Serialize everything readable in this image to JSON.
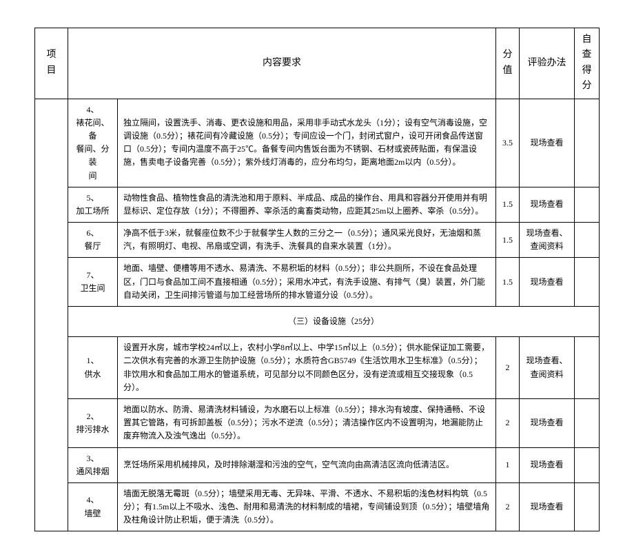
{
  "header": {
    "project": "项\n目",
    "content": "内容要求",
    "score": "分\n值",
    "method": "评验办法",
    "selfscore": "自查\n得分"
  },
  "rows": [
    {
      "subitem": "4、\n裱花间、备\n餐间、分装\n间",
      "content": "独立隔间，设置洗手、消毒、更衣设施和用品，采用非手动式水龙头（1分）；设有空气消毒设施，空调设施（0.5分）；裱花间有冷藏设施（0.5分）；专间应设一个门，封闭式窗户，设可开闭食品传送窗口（0.5分）；专间内温度不高于25℃。备餐专间内售饭台面为不锈钢、石材或瓷砖贴面，有保温设施，售卖电子设备完善（0.5分）；紫外线灯消毒的，应分布均匀，距离地面2m以内（0.5分）。",
      "score": "3.5",
      "method": "现场查看"
    },
    {
      "subitem": "5、\n加工场所",
      "content": "动物性食品、植物性食品的清洗池和用于原料、半成品、成品的操作台、用具和容器分开使用并有明显标识、定位存放（1分）；不得圈养、宰杀活的禽畜类动物，应距其25m以上圈养、宰杀（0.5分）。",
      "score": "1.5",
      "method": "现场查看"
    },
    {
      "subitem": "6、\n餐厅",
      "content": "净高不低于3米，就餐座位数不少于就餐学生人数的三分之一（0.5分）；通风采光良好，无油烟和蒸汽，有照明灯、电视、吊扇或空调，有洗手、洗餐具的自来水装置（1分）。",
      "score": "1.5",
      "method": "现场查看、\n查阅资料"
    },
    {
      "subitem": "7、\n卫生间",
      "content": "地面、墙壁、便槽等用不透水、易清洗、不易积垢的材料（0.5分）；非公共厕所，不设在食品处理区，门口与食品加工间不直接相通（0.5分）；采用水冲式，有洗手设施、有排气（臭）装置，外门能自动关闭，卫生间排污管道与加工经营场所的排水管道分设（0.5分）。",
      "score": "1.5",
      "method": "现场查看"
    }
  ],
  "section_title": "（三）设备设施（25分）",
  "rows2": [
    {
      "subitem": "1、\n供水",
      "content": "设置开水房，城市学校24㎡以上，农村小学8㎡以上、中学15㎡以上（0.5分）；供水能保证加工需要，二次供水有完善的水源卫生防护设施（0.5分）；水质符合GB5749《生活饮用水卫生标准》（0.5分）；非饮用水和食品加工用水的管道系统，可见部分以不同颜色区分，没有逆流或相互交接现象（0.5分）。",
      "score": "2",
      "method": "现场查看、\n查阅资料"
    },
    {
      "subitem": "2、\n排污排水",
      "content": "地面以防水、防滑、易清洗材料铺设，为水磨石以上标准（0.5分）；排水沟有坡度、保持通畅、不设置其它管路，有可拆卸盖板（0.5分）；污水不逆流（0.5分）；清洁操作区内不设置明沟，地漏能防止废弃物流入及浊气逸出（0.5分）。",
      "score": "2",
      "method": "现场查看"
    },
    {
      "subitem": "3、\n通风排烟",
      "content": "烹饪场所采用机械排风，及时排除潮湿和污浊的空气，空气流向由高清洁区流向低清洁区。",
      "score": "1",
      "method": "现场查看"
    },
    {
      "subitem": "4、\n墙壁",
      "content": "墙面无脱落无霉斑（0.5分）；墙壁采用无毒、无异味、平滑、不透水、不易积垢的浅色材料构筑（0.5分）；有1.5m以上不吸水、浅色、耐用和易清洗的材料制成的墙裙，专间铺设到顶（0.5分）；墙壁墙角及柱角设计防止积垢，便于清洗（0.5分）。",
      "score": "2",
      "method": "现场查看"
    }
  ]
}
